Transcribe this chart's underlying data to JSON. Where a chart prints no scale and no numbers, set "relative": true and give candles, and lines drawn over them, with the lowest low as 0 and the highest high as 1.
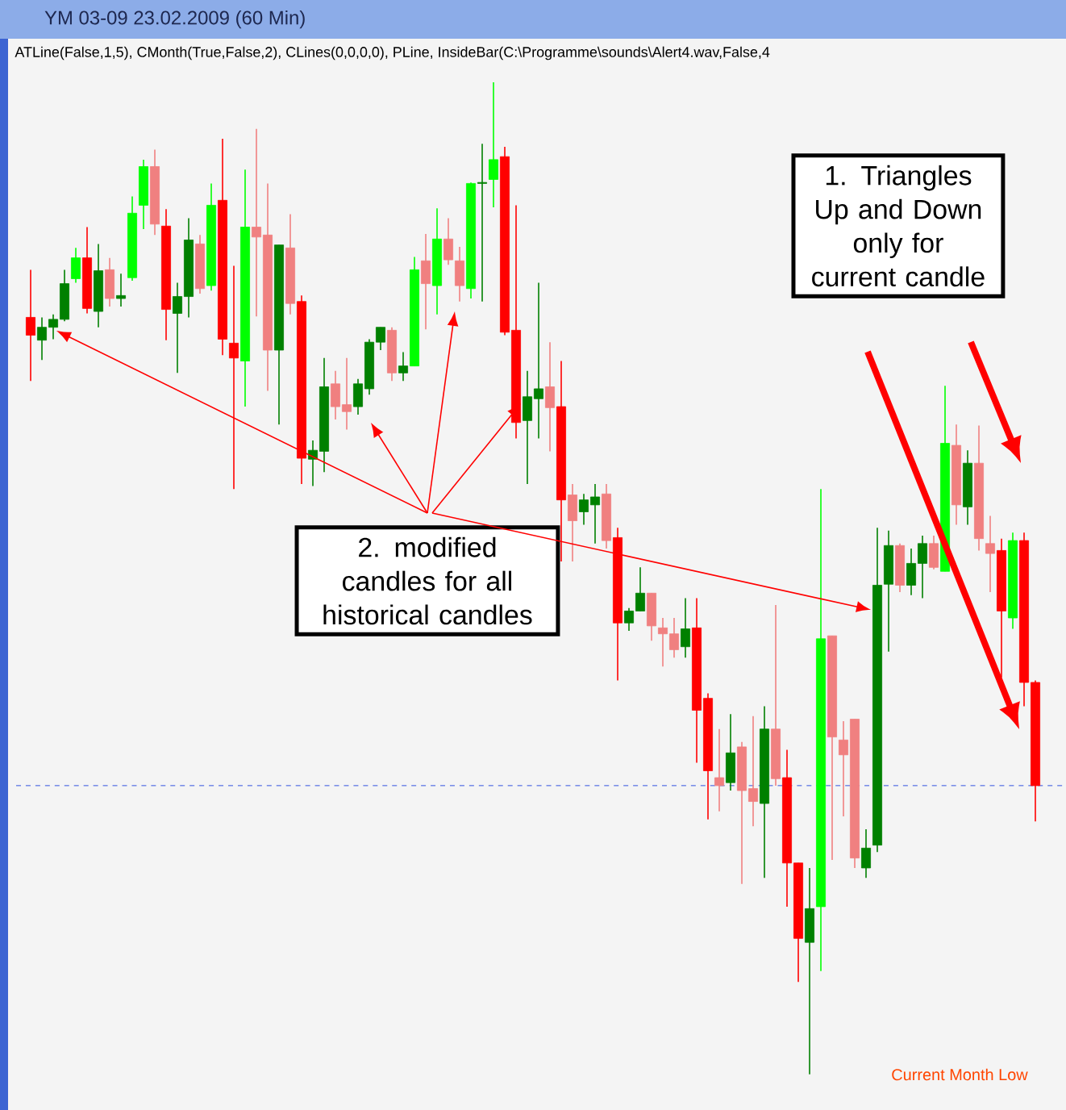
{
  "chart_data": {
    "type": "candlestick",
    "relative": true,
    "title": "YM 03-09  23.02.2009 (60 Min)",
    "subtitle": "ATLine(False,1,5), CMonth(True,False,2), CLines(0,0,0,0), PLine, InsideBar(C:\\Programme\\sounds\\Alert4.wav,False,4",
    "annotations": [
      "1. Triangles Up and Down only for current candle",
      "2. modified candles for all historical candles",
      "Current Month Low"
    ],
    "ref_lines": [
      {
        "axis": "y",
        "value": 0.291,
        "color": "#3050e0",
        "line_style": "dashed"
      }
    ],
    "categories": [
      null,
      null,
      null,
      null,
      null,
      null,
      null,
      null,
      null,
      null,
      null,
      null,
      null,
      null,
      null,
      null,
      null,
      null,
      null,
      null,
      null,
      null,
      null,
      null,
      null,
      null,
      null,
      null,
      null,
      null,
      null,
      null,
      null,
      null,
      null,
      null,
      null,
      null,
      null,
      null,
      null,
      null,
      null,
      null,
      null,
      null,
      null,
      null,
      null,
      null,
      null,
      null,
      null,
      null,
      null,
      null,
      null,
      null,
      null,
      null,
      null,
      null,
      null,
      null,
      null,
      null,
      null,
      null,
      null,
      null,
      null,
      null,
      null,
      null,
      null,
      null,
      null,
      null,
      null,
      null,
      null,
      null,
      null,
      null,
      null,
      null,
      null,
      null,
      null,
      null
    ],
    "ohlc": [
      [
        0.763,
        0.811,
        0.699,
        0.745
      ],
      [
        0.74,
        0.763,
        0.72,
        0.753
      ],
      [
        0.753,
        0.766,
        0.741,
        0.761
      ],
      [
        0.761,
        0.811,
        0.759,
        0.797
      ],
      [
        0.802,
        0.833,
        0.798,
        0.823
      ],
      [
        0.823,
        0.854,
        0.767,
        0.772
      ],
      [
        0.769,
        0.837,
        0.753,
        0.81
      ],
      [
        0.811,
        0.823,
        0.774,
        0.782
      ],
      [
        0.782,
        0.807,
        0.774,
        0.785
      ],
      [
        0.803,
        0.885,
        0.8,
        0.868
      ],
      [
        0.876,
        0.922,
        0.852,
        0.915
      ],
      [
        0.915,
        0.932,
        0.846,
        0.857
      ],
      [
        0.855,
        0.872,
        0.74,
        0.771
      ],
      [
        0.767,
        0.798,
        0.707,
        0.784
      ],
      [
        0.784,
        0.863,
        0.763,
        0.841
      ],
      [
        0.837,
        0.846,
        0.787,
        0.792
      ],
      [
        0.795,
        0.898,
        0.79,
        0.876
      ],
      [
        0.881,
        0.943,
        0.725,
        0.741
      ],
      [
        0.737,
        0.815,
        0.59,
        0.722
      ],
      [
        0.719,
        0.912,
        0.673,
        0.854
      ],
      [
        0.854,
        0.953,
        0.764,
        0.844
      ],
      [
        0.846,
        0.898,
        0.689,
        0.73
      ],
      [
        0.73,
        0.836,
        0.655,
        0.836
      ],
      [
        0.833,
        0.867,
        0.766,
        0.777
      ],
      [
        0.779,
        0.785,
        0.595,
        0.621
      ],
      [
        0.62,
        0.639,
        0.593,
        0.629
      ],
      [
        0.628,
        0.722,
        0.607,
        0.693
      ],
      [
        0.696,
        0.709,
        0.66,
        0.673
      ],
      [
        0.675,
        0.722,
        0.65,
        0.668
      ],
      [
        0.673,
        0.701,
        0.665,
        0.696
      ],
      [
        0.691,
        0.741,
        0.685,
        0.738
      ],
      [
        0.738,
        0.753,
        0.73,
        0.753
      ],
      [
        0.75,
        0.753,
        0.699,
        0.707
      ],
      [
        0.707,
        0.728,
        0.699,
        0.714
      ],
      [
        0.714,
        0.824,
        0.714,
        0.811
      ],
      [
        0.82,
        0.847,
        0.751,
        0.797
      ],
      [
        0.795,
        0.873,
        0.766,
        0.842
      ],
      [
        0.842,
        0.863,
        0.816,
        0.821
      ],
      [
        0.82,
        0.834,
        0.779,
        0.795
      ],
      [
        0.792,
        0.899,
        0.782,
        0.898
      ],
      [
        0.898,
        0.938,
        0.779,
        0.899
      ],
      [
        0.902,
        1.0,
        0.874,
        0.922
      ],
      [
        0.925,
        0.935,
        0.745,
        0.748
      ],
      [
        0.75,
        0.876,
        0.641,
        0.657
      ],
      [
        0.659,
        0.709,
        0.595,
        0.683
      ],
      [
        0.681,
        0.798,
        0.641,
        0.691
      ],
      [
        0.693,
        0.738,
        0.628,
        0.672
      ],
      [
        0.673,
        0.719,
        0.517,
        0.579
      ],
      [
        0.584,
        0.595,
        0.517,
        0.558
      ],
      [
        0.567,
        0.585,
        0.554,
        0.579
      ],
      [
        0.574,
        0.595,
        0.535,
        0.582
      ],
      [
        0.585,
        0.595,
        0.53,
        0.538
      ],
      [
        0.541,
        0.551,
        0.397,
        0.455
      ],
      [
        0.455,
        0.47,
        0.447,
        0.467
      ],
      [
        0.467,
        0.511,
        0.467,
        0.485
      ],
      [
        0.485,
        0.485,
        0.437,
        0.452
      ],
      [
        0.45,
        0.46,
        0.411,
        0.444
      ],
      [
        0.444,
        0.46,
        0.42,
        0.428
      ],
      [
        0.431,
        0.48,
        0.42,
        0.449
      ],
      [
        0.45,
        0.48,
        0.314,
        0.367
      ],
      [
        0.379,
        0.384,
        0.257,
        0.306
      ],
      [
        0.299,
        0.348,
        0.265,
        0.291
      ],
      [
        0.294,
        0.363,
        0.286,
        0.324
      ],
      [
        0.33,
        0.335,
        0.192,
        0.286
      ],
      [
        0.288,
        0.361,
        0.25,
        0.275
      ],
      [
        0.273,
        0.371,
        0.198,
        0.348
      ],
      [
        0.348,
        0.473,
        0.291,
        0.298
      ],
      [
        0.299,
        0.327,
        0.169,
        0.213
      ],
      [
        0.213,
        0.213,
        0.093,
        0.137
      ],
      [
        0.133,
        0.208,
        0.0,
        0.167
      ],
      [
        0.169,
        0.59,
        0.104,
        0.439
      ],
      [
        0.442,
        0.442,
        0.216,
        0.34
      ],
      [
        0.337,
        0.356,
        0.26,
        0.322
      ],
      [
        0.358,
        0.358,
        0.208,
        0.218
      ],
      [
        0.208,
        0.247,
        0.198,
        0.228
      ],
      [
        0.231,
        0.551,
        0.224,
        0.493
      ],
      [
        0.494,
        0.548,
        0.426,
        0.533
      ],
      [
        0.533,
        0.535,
        0.486,
        0.493
      ],
      [
        0.493,
        0.53,
        0.483,
        0.515
      ],
      [
        0.515,
        0.543,
        0.48,
        0.535
      ],
      [
        0.535,
        0.543,
        0.509,
        0.511
      ],
      [
        0.507,
        0.694,
        0.507,
        0.636
      ],
      [
        0.634,
        0.655,
        0.554,
        0.574
      ],
      [
        0.572,
        0.629,
        0.554,
        0.616
      ],
      [
        0.616,
        0.654,
        0.528,
        0.54
      ],
      [
        0.535,
        0.563,
        0.486,
        0.525
      ],
      [
        0.528,
        0.54,
        0.4,
        0.467
      ],
      [
        0.46,
        0.546,
        0.449,
        0.538
      ],
      [
        0.538,
        0.546,
        0.371,
        0.395
      ],
      [
        0.395,
        0.397,
        0.255,
        0.291
      ]
    ],
    "colors": [
      "#ff0000",
      "#008000",
      "#008000",
      "#008000",
      "#00ff00",
      "#ff0000",
      "#008000",
      "#f08080",
      "#008000",
      "#00ff00",
      "#00ff00",
      "#f08080",
      "#ff0000",
      "#008000",
      "#008000",
      "#f08080",
      "#00ff00",
      "#ff0000",
      "#ff0000",
      "#00ff00",
      "#f08080",
      "#f08080",
      "#008000",
      "#f08080",
      "#ff0000",
      "#008000",
      "#008000",
      "#f08080",
      "#f08080",
      "#008000",
      "#008000",
      "#008000",
      "#f08080",
      "#008000",
      "#00ff00",
      "#f08080",
      "#00ff00",
      "#f08080",
      "#f08080",
      "#00ff00",
      "#008000",
      "#00ff00",
      "#ff0000",
      "#ff0000",
      "#008000",
      "#008000",
      "#f08080",
      "#ff0000",
      "#f08080",
      "#008000",
      "#008000",
      "#f08080",
      "#ff0000",
      "#008000",
      "#008000",
      "#f08080",
      "#f08080",
      "#f08080",
      "#008000",
      "#ff0000",
      "#ff0000",
      "#f08080",
      "#008000",
      "#f08080",
      "#f08080",
      "#008000",
      "#f08080",
      "#ff0000",
      "#ff0000",
      "#008000",
      "#00ff00",
      "#f08080",
      "#f08080",
      "#f08080",
      "#008000",
      "#008000",
      "#008000",
      "#f08080",
      "#008000",
      "#008000",
      "#f08080",
      "#00ff00",
      "#f08080",
      "#008000",
      "#f08080",
      "#f08080",
      "#ff0000",
      "#00ff00",
      "#ff0000",
      "#ff0000"
    ]
  }
}
